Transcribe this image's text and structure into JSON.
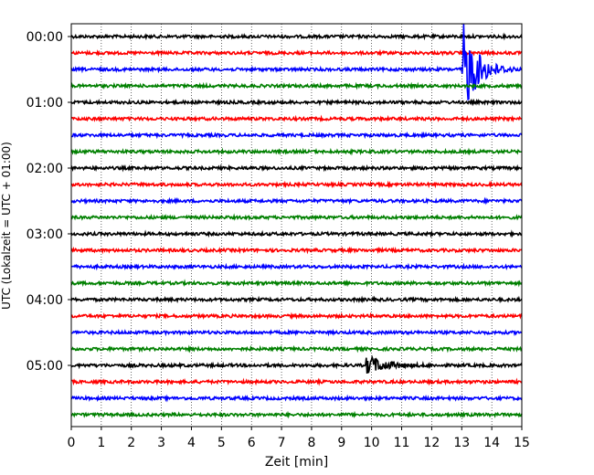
{
  "chart_data": {
    "type": "line",
    "title": "",
    "xlabel": "Zeit  [min]",
    "ylabel": "UTC (Lokalzeit = UTC + 01:00)",
    "xlim": [
      0,
      15
    ],
    "x_ticks": [
      0,
      1,
      2,
      3,
      4,
      5,
      6,
      7,
      8,
      9,
      10,
      11,
      12,
      13,
      14,
      15
    ],
    "y_ticks": [
      "00:00",
      "01:00",
      "02:00",
      "03:00",
      "04:00",
      "05:00"
    ],
    "grid": "vertical dotted",
    "trace_interval_min": 15,
    "trace_colors": [
      "#000000",
      "#ff0000",
      "#0000ff",
      "#008000"
    ],
    "traces_start": [
      "00:00",
      "00:15",
      "00:30",
      "00:45",
      "01:00",
      "01:15",
      "01:30",
      "01:45",
      "02:00",
      "02:15",
      "02:30",
      "02:45",
      "03:00",
      "03:15",
      "03:30",
      "03:45",
      "04:00",
      "04:15",
      "04:30",
      "04:45",
      "05:00",
      "05:15",
      "05:30",
      "05:45"
    ],
    "events": [
      {
        "trace_start": "00:30",
        "onset_min": 13.0,
        "peak_min": 13.05,
        "duration_min": 1.8
      },
      {
        "trace_start": "05:00",
        "onset_min": 9.8,
        "peak_min": 9.85,
        "duration_min": 2.2
      }
    ]
  }
}
